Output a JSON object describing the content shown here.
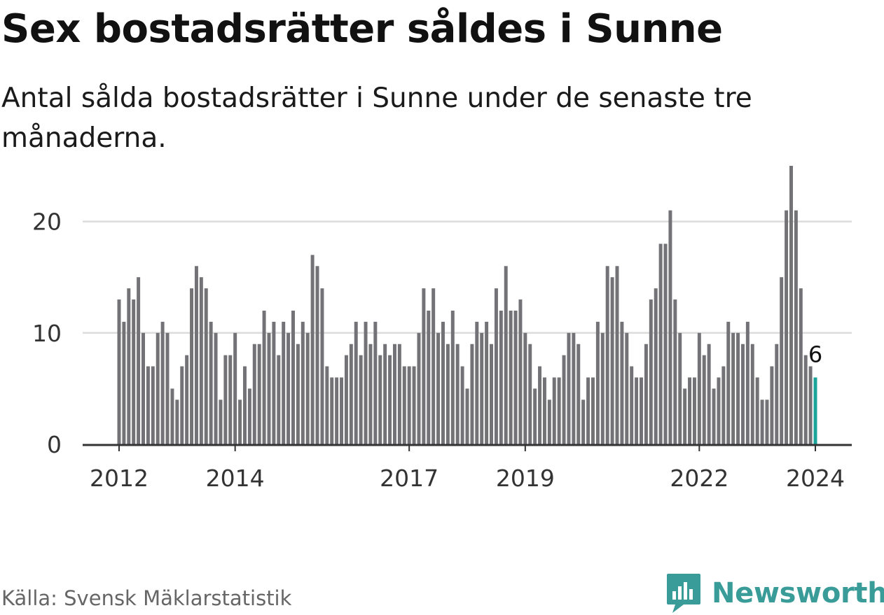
{
  "title": "Sex bostadsrätter såldes i Sunne",
  "subtitle": "Antal sålda bostadsrätter i Sunne under de senaste tre månaderna.",
  "source": "Källa: Svensk Mäklarstatistik",
  "brand": "Newsworthy",
  "colors": {
    "bar": "#737377",
    "highlight": "#1aa49a",
    "grid": "#dcdcdc",
    "axis": "#333333",
    "brand": "#3a9c98"
  },
  "chart_data": {
    "type": "bar",
    "title": "Sex bostadsrätter såldes i Sunne",
    "xlabel": "",
    "ylabel": "",
    "ylim": [
      0,
      25
    ],
    "yticks": [
      0,
      10,
      20
    ],
    "xticks": [
      {
        "label": "2012",
        "index": 0
      },
      {
        "label": "2014",
        "index": 24
      },
      {
        "label": "2017",
        "index": 60
      },
      {
        "label": "2019",
        "index": 84
      },
      {
        "label": "2022",
        "index": 120
      },
      {
        "label": "2024",
        "index": 144
      }
    ],
    "highlight": {
      "index": 144,
      "label": "6"
    },
    "grid": true,
    "values": [
      13,
      11,
      14,
      13,
      15,
      10,
      7,
      7,
      10,
      11,
      10,
      5,
      4,
      7,
      8,
      14,
      16,
      15,
      14,
      11,
      10,
      4,
      8,
      8,
      10,
      4,
      7,
      5,
      9,
      9,
      12,
      10,
      11,
      8,
      11,
      10,
      12,
      9,
      11,
      10,
      17,
      16,
      14,
      7,
      6,
      6,
      6,
      8,
      9,
      11,
      8,
      11,
      9,
      11,
      8,
      9,
      8,
      9,
      9,
      7,
      7,
      7,
      10,
      14,
      12,
      14,
      10,
      11,
      9,
      12,
      9,
      7,
      5,
      9,
      11,
      10,
      11,
      9,
      14,
      12,
      16,
      12,
      12,
      13,
      10,
      9,
      5,
      7,
      6,
      4,
      6,
      6,
      8,
      10,
      10,
      9,
      4,
      6,
      6,
      11,
      10,
      16,
      15,
      16,
      11,
      10,
      7,
      6,
      6,
      9,
      13,
      14,
      18,
      18,
      21,
      13,
      10,
      5,
      6,
      6,
      10,
      8,
      9,
      5,
      6,
      7,
      11,
      10,
      10,
      9,
      11,
      9,
      6,
      4,
      4,
      7,
      9,
      15,
      21,
      25,
      21,
      14,
      8,
      7,
      6
    ]
  }
}
